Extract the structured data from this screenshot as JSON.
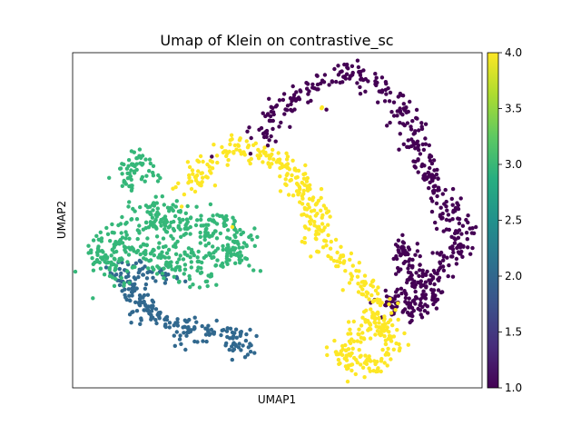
{
  "chart_data": {
    "type": "scatter",
    "title": "Umap of Klein on contrastive_sc",
    "xlabel": "UMAP1",
    "ylabel": "UMAP2",
    "xticks_visible": false,
    "yticks_visible": false,
    "grid": false,
    "legend": "colorbar-right",
    "colormap": "viridis",
    "xlim": [
      0,
      100
    ],
    "ylim": [
      0,
      100
    ],
    "colorbar": {
      "range": [
        1.0,
        4.0
      ],
      "ticks": [
        1.0,
        1.5,
        2.0,
        2.5,
        3.0,
        3.5,
        4.0
      ],
      "tick_labels": [
        "1.0",
        "1.5",
        "2.0",
        "2.5",
        "3.0",
        "3.5",
        "4.0"
      ]
    },
    "color_scale": {
      "1": "#440154",
      "2": "#31688e",
      "3": "#35b779",
      "4": "#fde725"
    },
    "series": [
      {
        "value": 1,
        "clusters": [
          {
            "path": [
              [
                45.5,
                74
              ],
              [
                48,
                79
              ],
              [
                51,
                83.5
              ],
              [
                53.5,
                86.5
              ],
              [
                57,
                89
              ],
              [
                60.5,
                90.5
              ],
              [
                62.5,
                92
              ],
              [
                65.5,
                94.5
              ],
              [
                68,
                94.5
              ],
              [
                71,
                92.5
              ],
              [
                74,
                90
              ],
              [
                77,
                87.5
              ],
              [
                80,
                84.5
              ],
              [
                82,
                80.5
              ],
              [
                83,
                76
              ],
              [
                84,
                70.5
              ],
              [
                86,
                65.5
              ],
              [
                88.5,
                61.5
              ],
              [
                90.5,
                57
              ],
              [
                92.5,
                52.5
              ],
              [
                94,
                48
              ],
              [
                95,
                45
              ],
              [
                94,
                41.5
              ],
              [
                91.5,
                39
              ],
              [
                89,
                36.5
              ],
              [
                88.5,
                33
              ],
              [
                89,
                29.5
              ],
              [
                87,
                25
              ],
              [
                83.5,
                23
              ],
              [
                80,
                24
              ],
              [
                82.5,
                28
              ],
              [
                83.5,
                32
              ],
              [
                84,
                35.5
              ],
              [
                82,
                38
              ],
              [
                80.5,
                40.5
              ],
              [
                81,
                44
              ]
            ],
            "n": 520,
            "spread": 1.8
          },
          {
            "path": [
              [
                77,
                28
              ],
              [
                79,
                25
              ],
              [
                82,
                24.5
              ]
            ],
            "n": 25,
            "spread": 1.2
          },
          {
            "path": [
              [
                62,
                83
              ]
            ],
            "n": 1,
            "spread": 0
          },
          {
            "path": [
              [
                34,
                69
              ]
            ],
            "n": 1,
            "spread": 0
          },
          {
            "path": [
              [
                73,
                25
              ]
            ],
            "n": 2,
            "spread": 0.6
          },
          {
            "path": [
              [
                78,
                24
              ]
            ],
            "n": 1,
            "spread": 0
          },
          {
            "path": [
              [
                75.5,
                21
              ]
            ],
            "n": 1,
            "spread": 0
          }
        ]
      },
      {
        "value": 2,
        "clusters": [
          {
            "path": [
              [
                11,
                36
              ],
              [
                14,
                30
              ],
              [
                17,
                25
              ],
              [
                21,
                21
              ],
              [
                25,
                18
              ],
              [
                31,
                17
              ],
              [
                37,
                16
              ],
              [
                41,
                14.5
              ],
              [
                42,
                11
              ]
            ],
            "n": 210,
            "spread": 1.9
          },
          {
            "path": [
              [
                15,
                35
              ],
              [
                20,
                34
              ],
              [
                25,
                33
              ]
            ],
            "n": 30,
            "spread": 1.2
          },
          {
            "path": [
              [
                16,
                38
              ]
            ],
            "n": 4,
            "spread": 1.0
          }
        ]
      },
      {
        "value": 3,
        "clusters": [
          {
            "path": [
              [
                7,
                37
              ],
              [
                9,
                42
              ],
              [
                12,
                46
              ],
              [
                16,
                48
              ],
              [
                21,
                49
              ],
              [
                26,
                49
              ],
              [
                30,
                48
              ],
              [
                35,
                46
              ],
              [
                39,
                44
              ],
              [
                42,
                41
              ],
              [
                38,
                39
              ],
              [
                33,
                38
              ],
              [
                28,
                37
              ],
              [
                23,
                38
              ],
              [
                18,
                39
              ],
              [
                13,
                39
              ]
            ],
            "n": 420,
            "spread": 3.0
          },
          {
            "path": [
              [
                13,
                60
              ],
              [
                15,
                65
              ],
              [
                16,
                69
              ],
              [
                17,
                66
              ],
              [
                19,
                63
              ]
            ],
            "n": 60,
            "spread": 1.6
          },
          {
            "path": [
              [
                20,
                54
              ]
            ],
            "n": 12,
            "spread": 1.5
          },
          {
            "path": [
              [
                6,
                41
              ],
              [
                9,
                37
              ],
              [
                11,
                32
              ],
              [
                13,
                29
              ]
            ],
            "n": 25,
            "spread": 1.0
          },
          {
            "path": [
              [
                35,
                51
              ],
              [
                39,
                49
              ],
              [
                42,
                46
              ]
            ],
            "n": 20,
            "spread": 1.2
          }
        ]
      },
      {
        "value": 4,
        "clusters": [
          {
            "path": [
              [
                28,
                58
              ],
              [
                30,
                63
              ],
              [
                33,
                67
              ],
              [
                36,
                70
              ],
              [
                40,
                72
              ],
              [
                44,
                71
              ],
              [
                48,
                69
              ],
              [
                52,
                66
              ],
              [
                55,
                62
              ],
              [
                57,
                58
              ],
              [
                58.5,
                54
              ],
              [
                59.5,
                50
              ],
              [
                60,
                46
              ],
              [
                61,
                43
              ],
              [
                63,
                40
              ],
              [
                66,
                37
              ],
              [
                69,
                34
              ],
              [
                71,
                31
              ],
              [
                73,
                27
              ],
              [
                75,
                24
              ],
              [
                76,
                20
              ],
              [
                77,
                16
              ],
              [
                78,
                12
              ],
              [
                76,
                9
              ],
              [
                72,
                7
              ],
              [
                68,
                7
              ],
              [
                65,
                10
              ],
              [
                68,
                13
              ],
              [
                71,
                16
              ],
              [
                73,
                19
              ],
              [
                74,
                22
              ]
            ],
            "n": 480,
            "spread": 1.8
          },
          {
            "path": [
              [
                60.5,
                84
              ],
              [
                61.5,
                83.5
              ]
            ],
            "n": 2,
            "spread": 0.4
          },
          {
            "path": [
              [
                77.5,
                26.5
              ]
            ],
            "n": 1,
            "spread": 0
          },
          {
            "path": [
              [
                39,
                48
              ]
            ],
            "n": 1,
            "spread": 0
          }
        ]
      }
    ]
  }
}
